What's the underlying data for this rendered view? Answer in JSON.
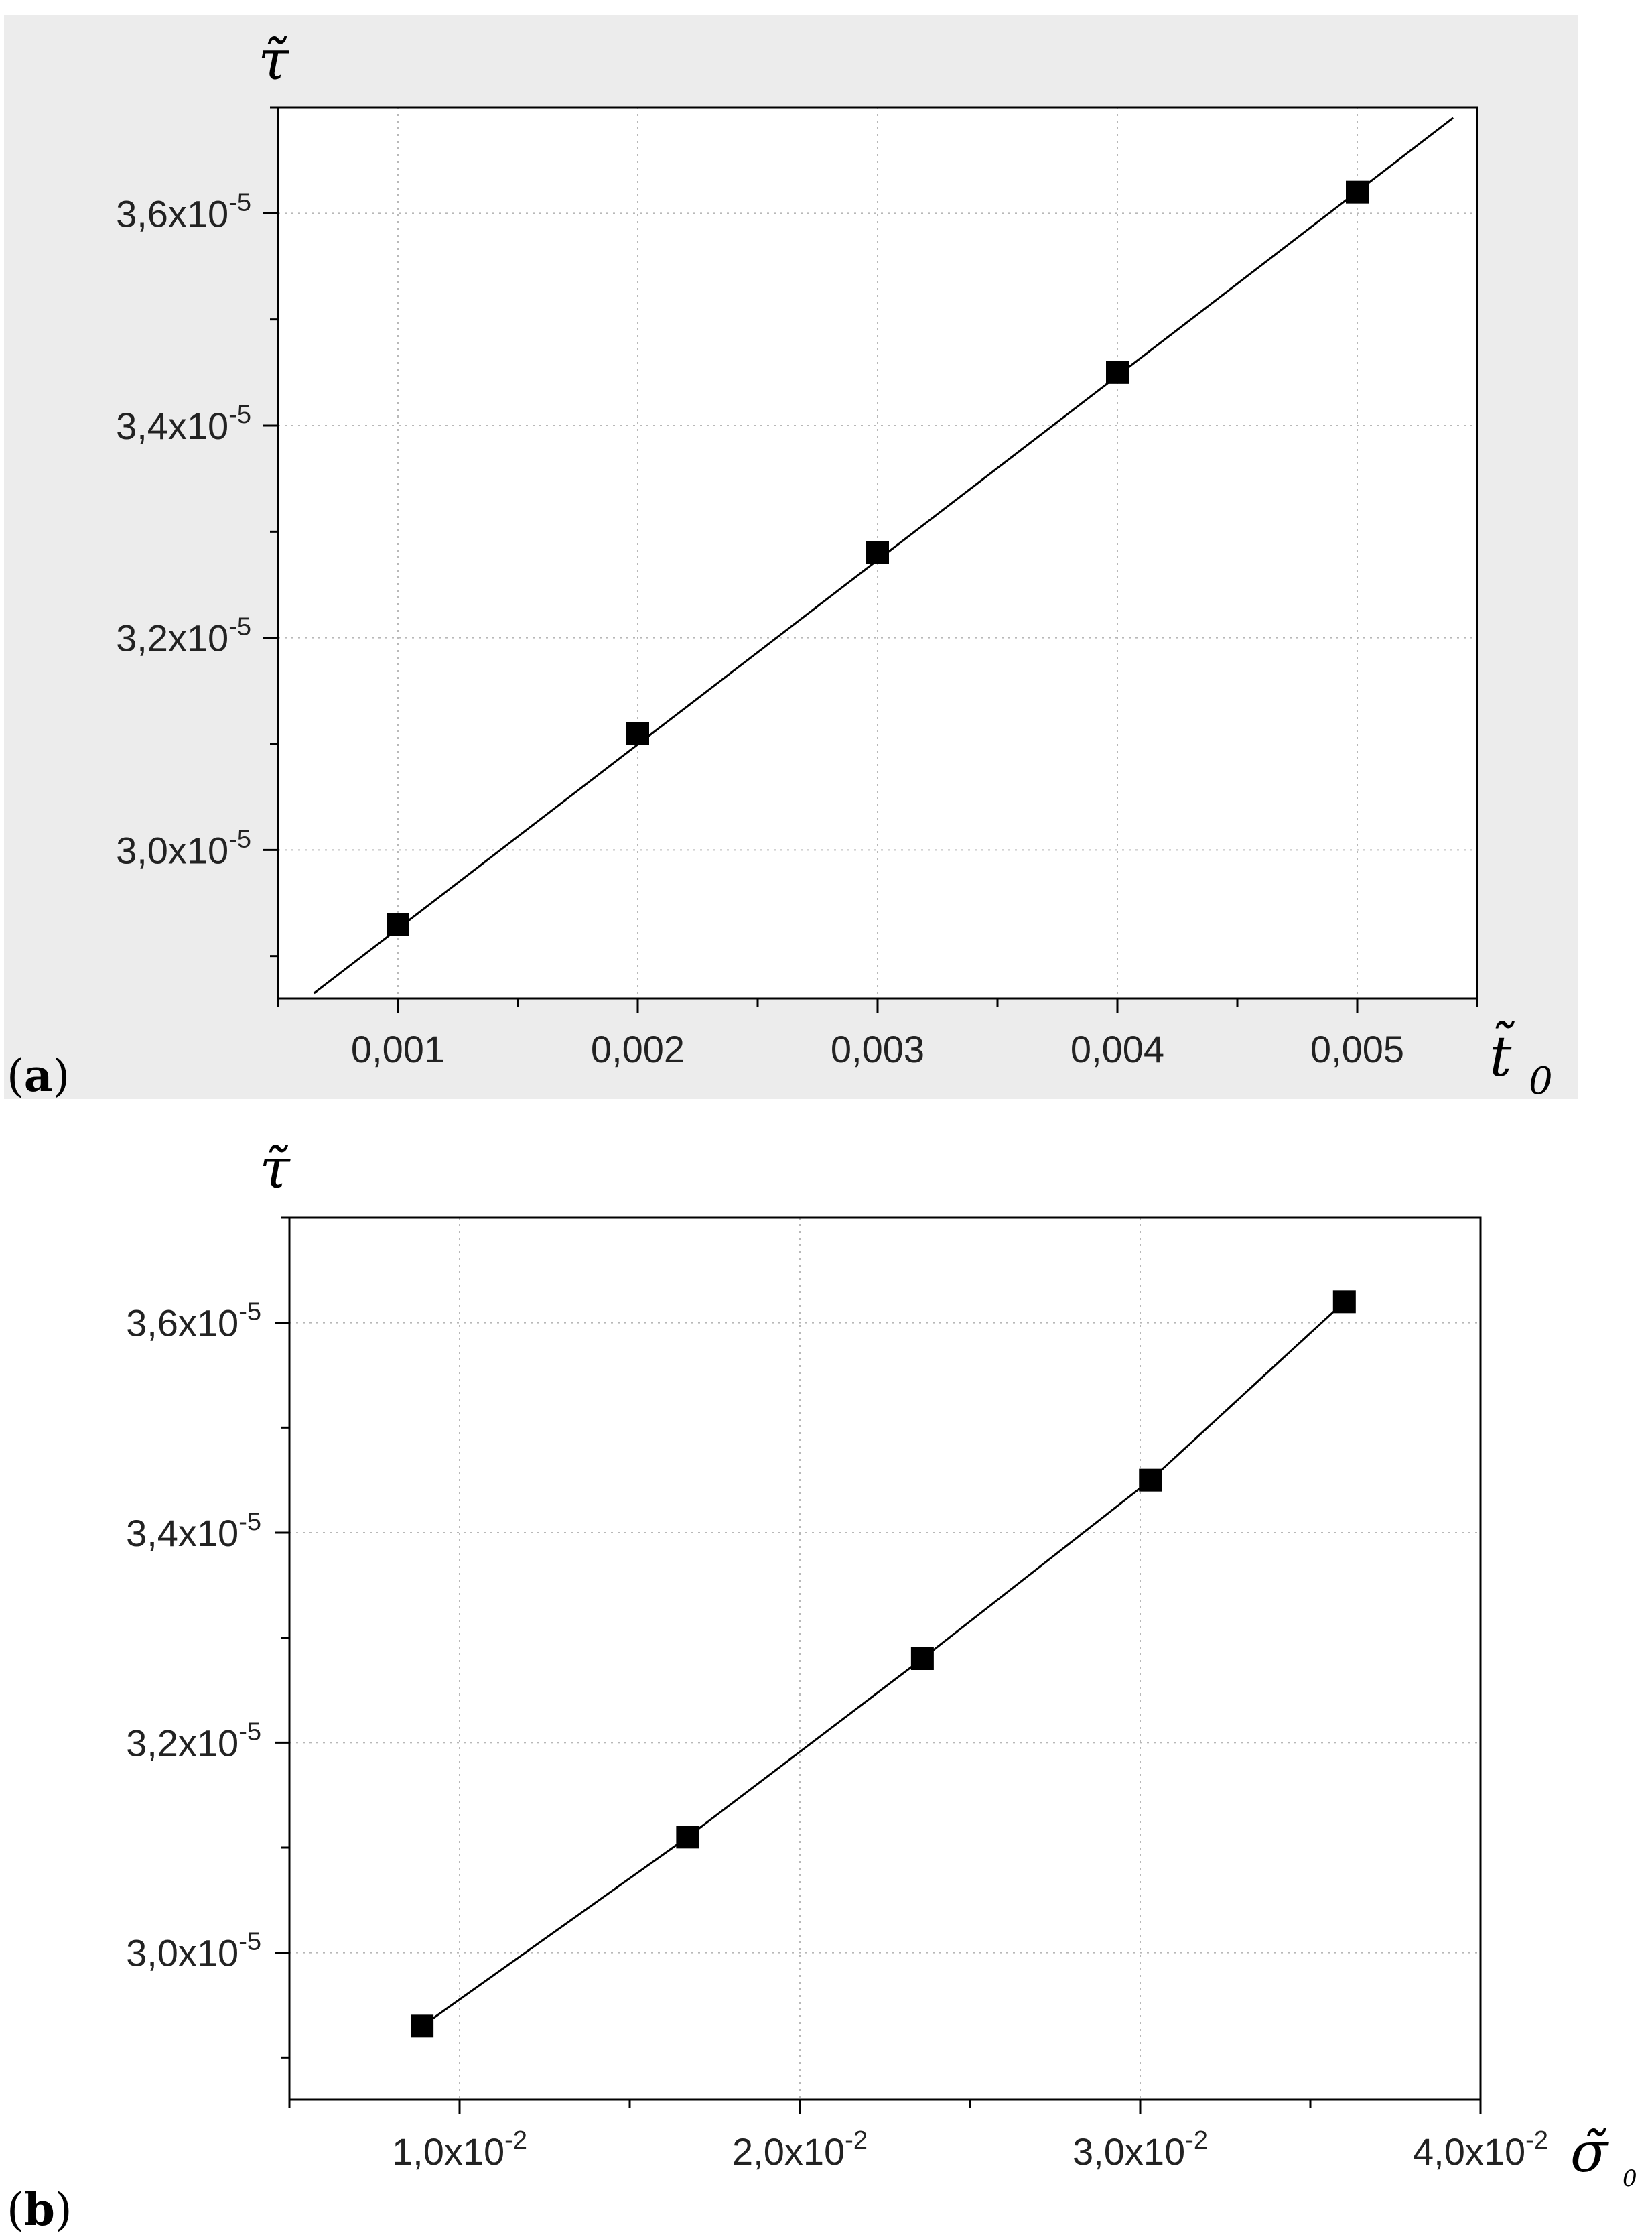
{
  "chart_data": [
    {
      "type": "line",
      "panel_label": "a",
      "xlabel": "t̃",
      "xlabel_sub": "0",
      "ylabel": "τ̃",
      "xlim": [
        0.0005,
        0.0055
      ],
      "ylim": [
        2.86e-05,
        3.7e-05
      ],
      "x_ticks": [
        {
          "v": 0.001,
          "label": "0,001"
        },
        {
          "v": 0.002,
          "label": "0,002"
        },
        {
          "v": 0.003,
          "label": "0,003"
        },
        {
          "v": 0.004,
          "label": "0,004"
        },
        {
          "v": 0.005,
          "label": "0,005"
        }
      ],
      "y_ticks": [
        {
          "v": 3e-05,
          "mant": "3,0x10",
          "exp": "-5"
        },
        {
          "v": 3.2e-05,
          "mant": "3,2x10",
          "exp": "-5"
        },
        {
          "v": 3.4e-05,
          "mant": "3,4x10",
          "exp": "-5"
        },
        {
          "v": 3.6e-05,
          "mant": "3,6x10",
          "exp": "-5"
        }
      ],
      "grid": true,
      "series": [
        {
          "marker": "square",
          "x": [
            0.001,
            0.002,
            0.003,
            0.004,
            0.005
          ],
          "y": [
            2.93e-05,
            3.11e-05,
            3.28e-05,
            3.45e-05,
            3.62e-05
          ]
        }
      ],
      "fit_line": {
        "x": [
          0.00065,
          0.0054
        ],
        "y": [
          2.865e-05,
          3.69e-05
        ]
      }
    },
    {
      "type": "line",
      "panel_label": "b",
      "xlabel": "σ̃",
      "xlabel_sub": "0",
      "ylabel": "τ̃",
      "xlim": [
        0.005,
        0.04
      ],
      "ylim": [
        2.86e-05,
        3.7e-05
      ],
      "x_ticks": [
        {
          "v": 0.01,
          "mant": "1,0x10",
          "exp": "-2"
        },
        {
          "v": 0.02,
          "mant": "2,0x10",
          "exp": "-2"
        },
        {
          "v": 0.03,
          "mant": "3,0x10",
          "exp": "-2"
        },
        {
          "v": 0.04,
          "mant": "4,0x10",
          "exp": "-2"
        }
      ],
      "y_ticks": [
        {
          "v": 3e-05,
          "mant": "3,0x10",
          "exp": "-5"
        },
        {
          "v": 3.2e-05,
          "mant": "3,2x10",
          "exp": "-5"
        },
        {
          "v": 3.4e-05,
          "mant": "3,4x10",
          "exp": "-5"
        },
        {
          "v": 3.6e-05,
          "mant": "3,6x10",
          "exp": "-5"
        }
      ],
      "grid": true,
      "series": [
        {
          "marker": "square",
          "x": [
            0.0089,
            0.0167,
            0.0236,
            0.0303,
            0.036
          ],
          "y": [
            2.93e-05,
            3.11e-05,
            3.28e-05,
            3.45e-05,
            3.62e-05
          ]
        }
      ]
    }
  ]
}
